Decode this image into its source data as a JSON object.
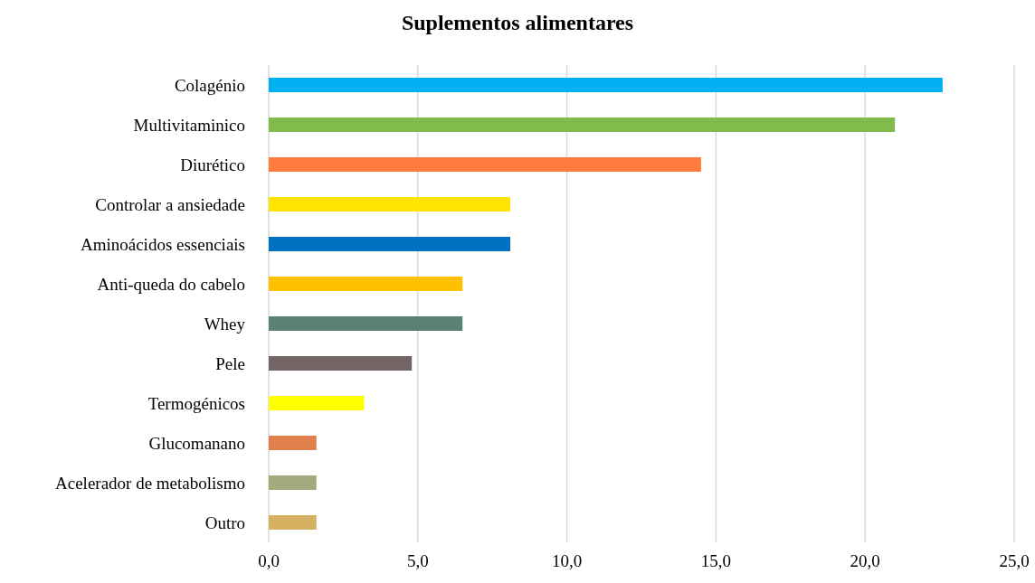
{
  "chart_data": {
    "type": "bar",
    "orientation": "horizontal",
    "title": "Suplementos alimentares",
    "categories": [
      "Colagénio",
      "Multivitaminico",
      "Diurético",
      "Controlar a ansiedade",
      "Aminoácidos essenciais",
      "Anti-queda do cabelo",
      "Whey",
      "Pele",
      "Termogénicos",
      "Glucomanano",
      "Acelerador de metabolismo",
      "Outro"
    ],
    "values": [
      22.6,
      21.0,
      14.5,
      8.1,
      8.1,
      6.5,
      6.5,
      4.8,
      3.2,
      1.6,
      1.6,
      1.6
    ],
    "colors": [
      "#00b0f0",
      "#81bb4b",
      "#ff7c3f",
      "#ffe400",
      "#0070c0",
      "#ffc000",
      "#5a8274",
      "#736565",
      "#ffff00",
      "#e0804d",
      "#a3aa7c",
      "#d6b162"
    ],
    "xlim": [
      0,
      25
    ],
    "xticks": [
      {
        "value": 0,
        "label": "0,0"
      },
      {
        "value": 5,
        "label": "5,0"
      },
      {
        "value": 10,
        "label": "10,0"
      },
      {
        "value": 15,
        "label": "15,0"
      },
      {
        "value": 20,
        "label": "20,0"
      },
      {
        "value": 25,
        "label": "25,0"
      }
    ],
    "grid": "x",
    "legend": false
  }
}
